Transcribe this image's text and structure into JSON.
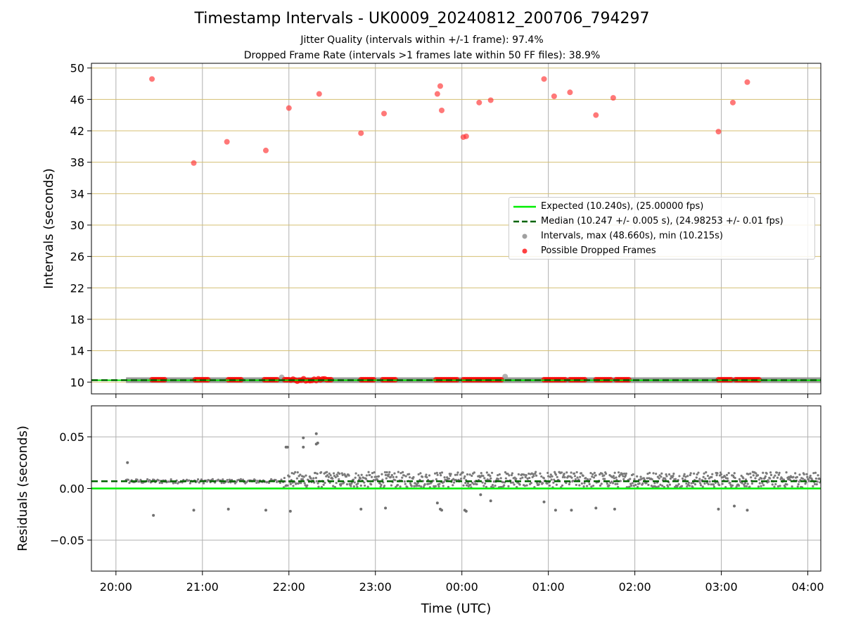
{
  "chart_data": [
    {
      "type": "scatter",
      "title": "Timestamp Intervals - UK0009_20240812_200706_794297",
      "subtitle_lines": [
        "Jitter Quality (intervals within +/-1 frame): 97.4%",
        "Dropped Frame Rate (intervals >1 frames late within 50 FF files): 38.9%"
      ],
      "xlabel": "",
      "ylabel": "Intervals (seconds)",
      "xlim": [
        "19:43",
        "04:09"
      ],
      "ylim": [
        8.5,
        50.6
      ],
      "x_tick_labels": [
        "20:00",
        "21:00",
        "22:00",
        "23:00",
        "00:00",
        "01:00",
        "02:00",
        "03:00",
        "04:00"
      ],
      "y_ticks": [
        10,
        14,
        18,
        22,
        26,
        30,
        34,
        38,
        42,
        46,
        50
      ],
      "grid": true,
      "legend_position": "center-right",
      "series": [
        {
          "name": "Expected (10.240s), (25.00000 fps)",
          "kind": "hline",
          "y": 10.24,
          "color": "#00ee00",
          "style": "solid"
        },
        {
          "name": "Median (10.247 +/- 0.005 s), (24.98253 +/- 0.01 fps)",
          "kind": "hline",
          "y": 10.247,
          "color": "#006400",
          "style": "dashed"
        },
        {
          "name": "Intervals, max (48.660s), min (10.215s)",
          "kind": "band",
          "color": "#808080",
          "x_range": [
            "20:07",
            "04:09"
          ],
          "y": 10.247,
          "outliers": [
            {
              "x": "21:55",
              "y": 10.6
            },
            {
              "x": "00:30",
              "y": 10.7
            }
          ]
        },
        {
          "name": "Possible Dropped Frames",
          "kind": "points",
          "color": "#ff0000",
          "points": [
            {
              "x": "20:25",
              "y": 48.6
            },
            {
              "x": "20:54",
              "y": 37.9
            },
            {
              "x": "21:17",
              "y": 40.6
            },
            {
              "x": "21:44",
              "y": 39.5
            },
            {
              "x": "22:00",
              "y": 44.9
            },
            {
              "x": "22:21",
              "y": 46.7
            },
            {
              "x": "22:50",
              "y": 41.7
            },
            {
              "x": "23:06",
              "y": 44.2
            },
            {
              "x": "23:43",
              "y": 46.7
            },
            {
              "x": "23:45",
              "y": 47.7
            },
            {
              "x": "23:46",
              "y": 44.6
            },
            {
              "x": "00:01",
              "y": 41.2
            },
            {
              "x": "00:03",
              "y": 41.3
            },
            {
              "x": "00:12",
              "y": 45.6
            },
            {
              "x": "00:20",
              "y": 45.9
            },
            {
              "x": "00:57",
              "y": 48.6
            },
            {
              "x": "01:04",
              "y": 46.4
            },
            {
              "x": "01:15",
              "y": 46.9
            },
            {
              "x": "01:33",
              "y": 44.0
            },
            {
              "x": "01:45",
              "y": 46.2
            },
            {
              "x": "02:58",
              "y": 41.9
            },
            {
              "x": "03:08",
              "y": 45.6
            },
            {
              "x": "03:18",
              "y": 48.2
            }
          ],
          "low_clusters": [
            [
              "20:25",
              "20:35"
            ],
            [
              "20:55",
              "21:04"
            ],
            [
              "21:18",
              "21:28"
            ],
            [
              "21:43",
              "21:53"
            ],
            [
              "21:57",
              "22:30"
            ],
            [
              "22:50",
              "23:00"
            ],
            [
              "23:05",
              "23:15"
            ],
            [
              "23:42",
              "23:57"
            ],
            [
              "00:01",
              "00:28"
            ],
            [
              "00:57",
              "01:13"
            ],
            [
              "01:15",
              "01:26"
            ],
            [
              "01:33",
              "01:44"
            ],
            [
              "01:47",
              "01:56"
            ],
            [
              "02:58",
              "03:08"
            ],
            [
              "03:10",
              "03:27"
            ]
          ],
          "low_y": 10.3
        }
      ]
    },
    {
      "type": "scatter",
      "title": "",
      "xlabel": "Time (UTC)",
      "ylabel": "Residuals (seconds)",
      "xlim": [
        "19:43",
        "04:09"
      ],
      "ylim": [
        -0.08,
        0.08
      ],
      "x_tick_labels": [
        "20:00",
        "21:00",
        "22:00",
        "23:00",
        "00:00",
        "01:00",
        "02:00",
        "03:00",
        "04:00"
      ],
      "y_tick_labels": [
        "0.05",
        "0.00",
        "−0.05"
      ],
      "y_ticks": [
        0.05,
        0.0,
        -0.05
      ],
      "grid": true,
      "series": [
        {
          "name": "Expected",
          "kind": "hline",
          "y": 0.0,
          "color": "#00ee00",
          "style": "solid"
        },
        {
          "name": "Median",
          "kind": "hline",
          "y": 0.007,
          "color": "#006400",
          "style": "dashed"
        },
        {
          "name": "Residuals",
          "kind": "points",
          "color": "#808080",
          "points": [
            {
              "x": "20:08",
              "y": 0.025
            },
            {
              "x": "20:26",
              "y": -0.026
            },
            {
              "x": "20:54",
              "y": -0.021
            },
            {
              "x": "21:18",
              "y": -0.02
            },
            {
              "x": "21:44",
              "y": -0.021
            },
            {
              "x": "21:58",
              "y": 0.04
            },
            {
              "x": "21:59",
              "y": 0.04
            },
            {
              "x": "22:01",
              "y": -0.022
            },
            {
              "x": "22:10",
              "y": 0.049
            },
            {
              "x": "22:10",
              "y": 0.04
            },
            {
              "x": "22:19",
              "y": 0.053
            },
            {
              "x": "22:19",
              "y": 0.043
            },
            {
              "x": "22:20",
              "y": 0.044
            },
            {
              "x": "22:50",
              "y": -0.02
            },
            {
              "x": "23:07",
              "y": -0.019
            },
            {
              "x": "23:43",
              "y": -0.014
            },
            {
              "x": "23:45",
              "y": -0.02
            },
            {
              "x": "23:46",
              "y": -0.021
            },
            {
              "x": "00:02",
              "y": -0.021
            },
            {
              "x": "00:03",
              "y": -0.022
            },
            {
              "x": "00:13",
              "y": -0.006
            },
            {
              "x": "00:20",
              "y": -0.012
            },
            {
              "x": "00:57",
              "y": -0.013
            },
            {
              "x": "01:05",
              "y": -0.021
            },
            {
              "x": "01:16",
              "y": -0.021
            },
            {
              "x": "01:33",
              "y": -0.019
            },
            {
              "x": "01:46",
              "y": -0.02
            },
            {
              "x": "02:58",
              "y": -0.02
            },
            {
              "x": "03:09",
              "y": -0.017
            },
            {
              "x": "03:18",
              "y": -0.021
            }
          ],
          "dense_before_22": {
            "x_range": [
              "20:07",
              "21:55"
            ],
            "y_range": [
              0.005,
              0.009
            ]
          },
          "dense_after_22": {
            "x_range": [
              "21:56",
              "04:09"
            ],
            "y_range": [
              0.001,
              0.016
            ]
          }
        }
      ]
    }
  ],
  "legend": {
    "entries": [
      {
        "label": "Expected (10.240s), (25.00000 fps)",
        "marker": "line",
        "color": "#00ee00"
      },
      {
        "label": "Median (10.247 +/- 0.005 s), (24.98253 +/- 0.01 fps)",
        "marker": "dashed",
        "color": "#006400"
      },
      {
        "label": "Intervals, max (48.660s), min (10.215s)",
        "marker": "dot",
        "color": "#a0a0a0"
      },
      {
        "label": "Possible Dropped Frames",
        "marker": "dot",
        "color": "#ff4040"
      }
    ]
  }
}
